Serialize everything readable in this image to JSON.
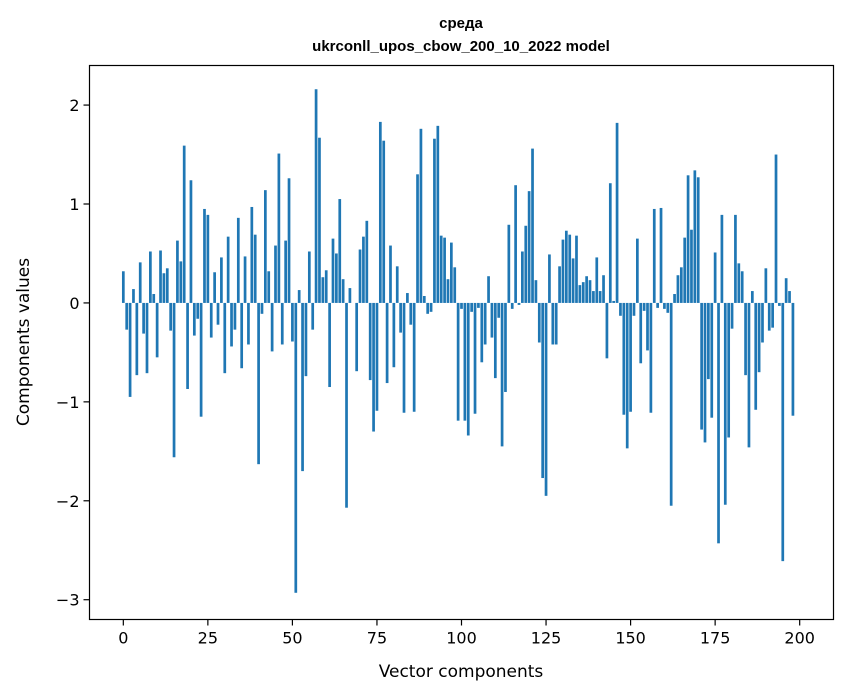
{
  "chart_data": {
    "type": "bar",
    "title": "среда",
    "subtitle": "ukrconll_upos_cbow_200_10_2022 model",
    "xlabel": "Vector components",
    "ylabel": "Components values",
    "xlim": [
      -10,
      210
    ],
    "ylim": [
      -3.2,
      2.4
    ],
    "xticks": [
      0,
      25,
      50,
      75,
      100,
      125,
      150,
      175,
      200
    ],
    "xtick_labels": [
      "0",
      "25",
      "50",
      "75",
      "100",
      "125",
      "150",
      "175",
      "200"
    ],
    "yticks": [
      -3,
      -2,
      -1,
      0,
      1,
      2
    ],
    "ytick_labels": [
      "−3",
      "−2",
      "−1",
      "0",
      "1",
      "2"
    ],
    "bar_color": "#1f77b4",
    "grid": false,
    "values": [
      0.32,
      -0.27,
      -0.95,
      0.14,
      -0.73,
      0.41,
      -0.31,
      -0.71,
      0.52,
      0.09,
      -0.55,
      0.53,
      0.3,
      0.35,
      -0.28,
      -1.56,
      0.63,
      0.42,
      1.59,
      -0.87,
      1.24,
      -0.33,
      -0.16,
      -1.15,
      0.95,
      0.89,
      -0.35,
      0.31,
      -0.22,
      0.46,
      -0.71,
      0.67,
      -0.44,
      -0.27,
      0.86,
      -0.66,
      0.47,
      -0.42,
      0.97,
      0.69,
      -1.63,
      -0.11,
      1.14,
      0.32,
      -0.49,
      0.58,
      1.51,
      -0.42,
      0.63,
      1.26,
      -0.39,
      -2.93,
      0.13,
      -1.7,
      -0.74,
      0.52,
      -0.27,
      2.16,
      1.67,
      0.26,
      0.33,
      -0.85,
      0.65,
      0.5,
      1.05,
      0.24,
      -2.07,
      0.15,
      0.0,
      -0.69,
      0.54,
      0.67,
      0.83,
      -0.78,
      -1.3,
      -1.09,
      1.83,
      1.64,
      -0.81,
      0.58,
      -0.65,
      0.37,
      -0.3,
      -1.11,
      0.1,
      -0.22,
      -1.1,
      1.3,
      1.76,
      0.07,
      -0.11,
      -0.09,
      1.66,
      1.79,
      0.68,
      0.66,
      0.24,
      0.61,
      0.36,
      -1.19,
      -0.06,
      -1.19,
      -1.34,
      -0.09,
      -1.12,
      -0.05,
      -0.6,
      -0.42,
      0.27,
      -0.35,
      -0.76,
      -0.15,
      -1.45,
      -0.9,
      0.79,
      -0.06,
      1.19,
      -0.02,
      0.52,
      0.78,
      1.13,
      1.56,
      0.23,
      -0.4,
      -1.77,
      -1.95,
      0.49,
      -0.42,
      -0.42,
      0.37,
      0.64,
      0.73,
      0.69,
      0.45,
      0.68,
      0.18,
      0.21,
      0.27,
      0.23,
      0.12,
      0.46,
      0.12,
      0.28,
      -0.56,
      1.21,
      0.02,
      1.82,
      -0.13,
      -1.13,
      -1.47,
      -1.1,
      -0.13,
      0.65,
      -0.61,
      -0.08,
      -0.48,
      -1.11,
      0.95,
      -0.05,
      0.96,
      -0.06,
      -0.1,
      -2.05,
      0.09,
      0.28,
      0.36,
      0.66,
      1.29,
      0.74,
      1.34,
      1.27,
      -1.28,
      -1.41,
      -0.77,
      -1.16,
      0.51,
      -2.43,
      0.89,
      -2.04,
      -1.36,
      -0.26,
      0.89,
      0.4,
      0.32,
      -0.73,
      -1.46,
      0.12,
      -1.08,
      -0.7,
      -0.4,
      0.35,
      -0.28,
      -0.25,
      1.5,
      -0.03,
      -2.61,
      0.25,
      0.12,
      -1.14,
      0.0
    ]
  }
}
